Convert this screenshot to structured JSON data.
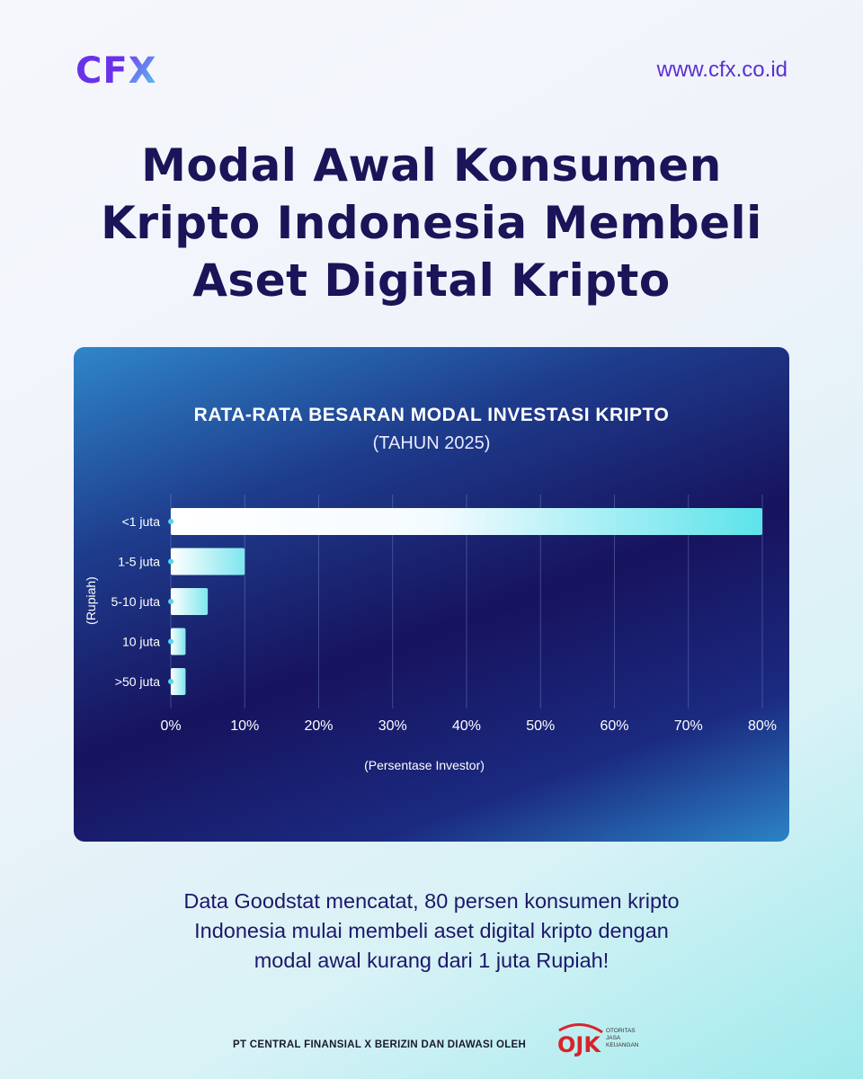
{
  "brand": {
    "logo_main": "CF",
    "logo_x": "X",
    "website": "www.cfx.co.id"
  },
  "headline": [
    "Modal Awal Konsumen",
    "Kripto Indonesia Membeli",
    "Aset Digital Kripto"
  ],
  "caption": [
    "Data Goodstat mencatat, 80 persen konsumen kripto",
    "Indonesia mulai membeli aset digital kripto dengan",
    "modal awal  kurang dari 1 juta Rupiah!"
  ],
  "footer": {
    "text": "PT CENTRAL FINANSIAL X BERIZIN DAN DIAWASI OLEH",
    "ojk_mark": "OJK",
    "ojk_lines": [
      "OTORITAS",
      "JASA",
      "KEUANGAN"
    ]
  },
  "colors": {
    "accent": "#6a32e8",
    "title": "#1a1458",
    "bar_end": "#5ce3ea"
  },
  "chart_data": {
    "type": "bar",
    "orientation": "horizontal",
    "title": "RATA-RATA BESARAN MODAL INVESTASI KRIPTO",
    "subtitle": "(TAHUN 2025)",
    "xlabel": "(Persentase Investor)",
    "ylabel": "(Rupiah)",
    "categories": [
      "<1 juta",
      "1-5 juta",
      "5-10 juta",
      "10 juta",
      ">50 juta"
    ],
    "values": [
      80,
      10,
      5,
      2,
      2
    ],
    "xlim": [
      0,
      80
    ],
    "xticks": [
      "0%",
      "10%",
      "20%",
      "30%",
      "40%",
      "50%",
      "60%",
      "70%",
      "80%"
    ],
    "grid": true
  }
}
